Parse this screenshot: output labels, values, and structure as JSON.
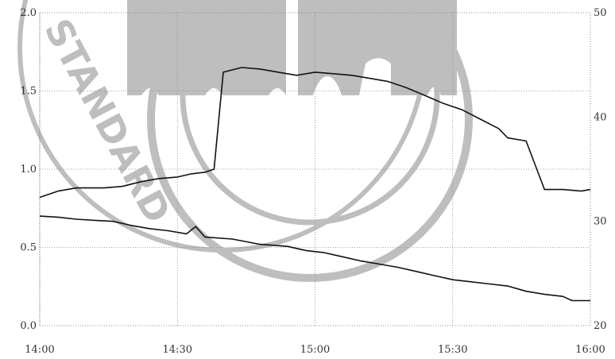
{
  "chart_data": {
    "type": "line",
    "title": "",
    "xlabel": "",
    "ylabel": "",
    "y2label": "",
    "grid": true,
    "x_ticks": [
      "14:00",
      "14:30",
      "15:00",
      "15:30",
      "16:00"
    ],
    "y_left_ticks": [
      "0.0",
      "0.5",
      "1.0",
      "1.5",
      "2.0"
    ],
    "y_right_ticks": [
      "20",
      "30",
      "40",
      "50"
    ],
    "ylim_left": [
      0,
      2.0
    ],
    "ylim_right": [
      20,
      50
    ],
    "xlim_minutes": [
      0,
      120
    ],
    "series": [
      {
        "axis": "left",
        "points": [
          [
            0,
            0.82
          ],
          [
            4,
            0.86
          ],
          [
            8,
            0.88
          ],
          [
            14,
            0.88
          ],
          [
            18,
            0.89
          ],
          [
            22,
            0.92
          ],
          [
            26,
            0.94
          ],
          [
            30,
            0.95
          ],
          [
            33,
            0.97
          ],
          [
            36,
            0.98
          ],
          [
            38,
            1.0
          ],
          [
            40,
            1.62
          ],
          [
            44,
            1.65
          ],
          [
            48,
            1.64
          ],
          [
            52,
            1.62
          ],
          [
            56,
            1.6
          ],
          [
            60,
            1.62
          ],
          [
            64,
            1.61
          ],
          [
            68,
            1.6
          ],
          [
            72,
            1.58
          ],
          [
            76,
            1.56
          ],
          [
            80,
            1.52
          ],
          [
            84,
            1.47
          ],
          [
            88,
            1.42
          ],
          [
            92,
            1.38
          ],
          [
            96,
            1.32
          ],
          [
            100,
            1.26
          ],
          [
            102,
            1.2
          ],
          [
            106,
            1.18
          ],
          [
            110,
            0.87
          ],
          [
            114,
            0.87
          ],
          [
            118,
            0.86
          ],
          [
            120,
            0.87
          ]
        ]
      },
      {
        "axis": "right",
        "points": [
          [
            0,
            30.5
          ],
          [
            4,
            30.4
          ],
          [
            8,
            30.2
          ],
          [
            12,
            30.1
          ],
          [
            16,
            30.0
          ],
          [
            20,
            29.6
          ],
          [
            24,
            29.3
          ],
          [
            28,
            29.1
          ],
          [
            32,
            28.8
          ],
          [
            34,
            29.5
          ],
          [
            36,
            28.5
          ],
          [
            42,
            28.3
          ],
          [
            48,
            27.8
          ],
          [
            54,
            27.6
          ],
          [
            58,
            27.2
          ],
          [
            62,
            27.0
          ],
          [
            66,
            26.6
          ],
          [
            70,
            26.2
          ],
          [
            74,
            25.9
          ],
          [
            78,
            25.6
          ],
          [
            82,
            25.2
          ],
          [
            86,
            24.8
          ],
          [
            90,
            24.4
          ],
          [
            94,
            24.2
          ],
          [
            98,
            24.0
          ],
          [
            102,
            23.8
          ],
          [
            106,
            23.3
          ],
          [
            110,
            23.0
          ],
          [
            114,
            22.8
          ],
          [
            116,
            22.4
          ],
          [
            120,
            22.4
          ]
        ]
      }
    ]
  },
  "watermark": {
    "text": "STANDARD"
  }
}
